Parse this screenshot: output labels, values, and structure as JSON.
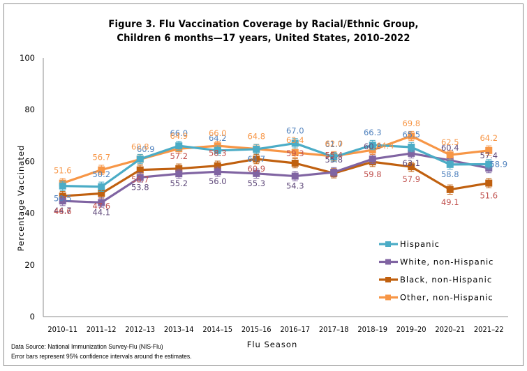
{
  "chart_data": {
    "type": "line",
    "title": "Figure 3. Flu Vaccination Coverage by Racial/Ethnic Group,",
    "subtitle": "Children 6 months—17 years, United States, 2010–2022",
    "xlabel": "Flu Season",
    "ylabel": "Percentage Vaccinated",
    "ylim": [
      0,
      100
    ],
    "yticks": [
      0,
      20,
      40,
      60,
      80,
      100
    ],
    "grid": false,
    "legend_position": "bottom-right",
    "categories": [
      "2010–11",
      "2011–12",
      "2012–13",
      "2013–14",
      "2014–15",
      "2015–16",
      "2016–17",
      "2017–18",
      "2018–19",
      "2019–20",
      "2020–21",
      "2021–22"
    ],
    "series": [
      {
        "name": "Hispanic",
        "color": "#4bacc6",
        "label_color": "#4f81bd",
        "values": [
          50.5,
          50.2,
          60.9,
          66.0,
          64.2,
          64.7,
          67.0,
          61.7,
          66.3,
          65.5,
          58.8,
          58.9
        ]
      },
      {
        "name": "White, non-Hispanic",
        "color": "#8064a2",
        "label_color": "#604a7b",
        "values": [
          44.7,
          44.1,
          53.8,
          55.2,
          56.0,
          55.3,
          54.3,
          55.8,
          60.9,
          63.1,
          60.4,
          57.4
        ]
      },
      {
        "name": "Black, non-Hispanic",
        "color": "#c0600f",
        "label_color": "#c0504d",
        "values": [
          46.6,
          47.6,
          56.7,
          57.2,
          58.3,
          60.9,
          59.3,
          55.4,
          59.8,
          57.9,
          49.1,
          51.6
        ]
      },
      {
        "name": "Other, non-Hispanic",
        "color": "#f79646",
        "label_color": "#f79646",
        "values": [
          51.6,
          56.7,
          60.8,
          64.9,
          66.0,
          64.8,
          63.4,
          62.0,
          64.4,
          69.8,
          62.5,
          64.2
        ]
      }
    ],
    "error_bars": "95% confidence intervals",
    "footnotes": [
      "Data Source: National Immunization Survey-Flu (NIS-Flu)",
      "Error bars represent 95% confidence intervals around the estimates."
    ]
  }
}
